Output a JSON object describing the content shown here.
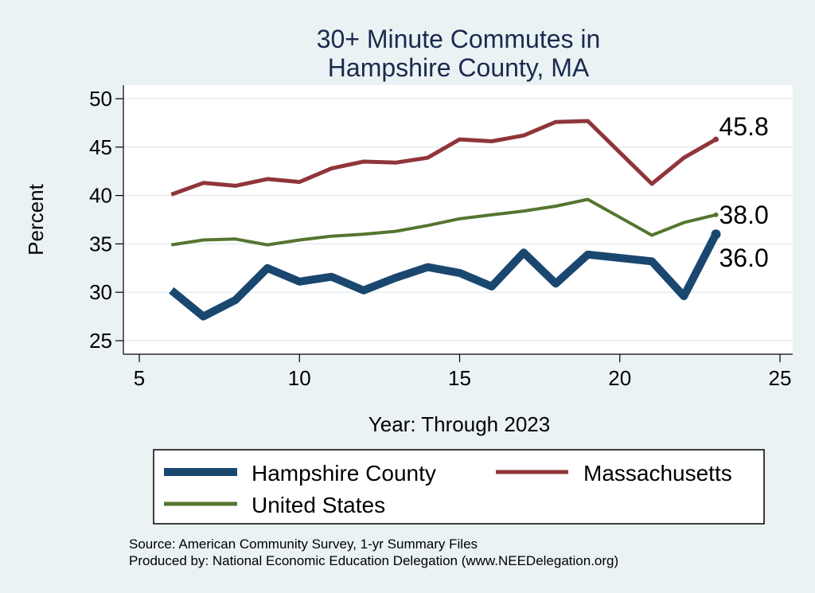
{
  "chart_data": {
    "type": "line",
    "title": [
      "30+ Minute Commutes in",
      "Hampshire County, MA"
    ],
    "xlabel": "Year: Through 2023",
    "ylabel": "Percent",
    "xlim": [
      5,
      25
    ],
    "ylim": [
      25,
      50
    ],
    "xticks": [
      5,
      10,
      15,
      20,
      25
    ],
    "yticks": [
      25,
      30,
      35,
      40,
      45,
      50
    ],
    "grid": true,
    "legend_position": "bottom",
    "series": [
      {
        "name": "Hampshire County",
        "color": "#1a476f",
        "points": [
          [
            6,
            30.2
          ],
          [
            7,
            27.5
          ],
          [
            8,
            29.2
          ],
          [
            9,
            32.5
          ],
          [
            10,
            31.1
          ],
          [
            11,
            31.6
          ],
          [
            12,
            30.2
          ],
          [
            13,
            31.5
          ],
          [
            14,
            32.6
          ],
          [
            15,
            32.0
          ],
          [
            16,
            30.6
          ],
          [
            17,
            34.1
          ],
          [
            18,
            30.9
          ],
          [
            19,
            33.9
          ],
          [
            21,
            33.2
          ],
          [
            22,
            29.6
          ],
          [
            23,
            36.0
          ]
        ],
        "end_label": "36.0"
      },
      {
        "name": "Massachusetts",
        "color": "#90353b",
        "points": [
          [
            6,
            40.1
          ],
          [
            7,
            41.3
          ],
          [
            8,
            41.0
          ],
          [
            9,
            41.7
          ],
          [
            10,
            41.4
          ],
          [
            11,
            42.8
          ],
          [
            12,
            43.5
          ],
          [
            13,
            43.4
          ],
          [
            14,
            43.9
          ],
          [
            15,
            45.8
          ],
          [
            16,
            45.6
          ],
          [
            17,
            46.2
          ],
          [
            18,
            47.6
          ],
          [
            19,
            47.7
          ],
          [
            21,
            41.2
          ],
          [
            22,
            43.9
          ],
          [
            23,
            45.8
          ]
        ],
        "end_label": "45.8"
      },
      {
        "name": "United States",
        "color": "#55752f",
        "points": [
          [
            6,
            34.9
          ],
          [
            7,
            35.4
          ],
          [
            8,
            35.5
          ],
          [
            9,
            34.9
          ],
          [
            10,
            35.4
          ],
          [
            11,
            35.8
          ],
          [
            12,
            36.0
          ],
          [
            13,
            36.3
          ],
          [
            14,
            36.9
          ],
          [
            15,
            37.6
          ],
          [
            16,
            38.0
          ],
          [
            17,
            38.4
          ],
          [
            18,
            38.9
          ],
          [
            19,
            39.6
          ],
          [
            21,
            35.9
          ],
          [
            22,
            37.2
          ],
          [
            23,
            38.0
          ]
        ],
        "end_label": "38.0"
      }
    ]
  },
  "source": {
    "line1": "Source: American Community Survey, 1-yr Summary Files",
    "line2": "Produced by: National Economic Education Delegation (www.NEEDelegation.org)"
  }
}
